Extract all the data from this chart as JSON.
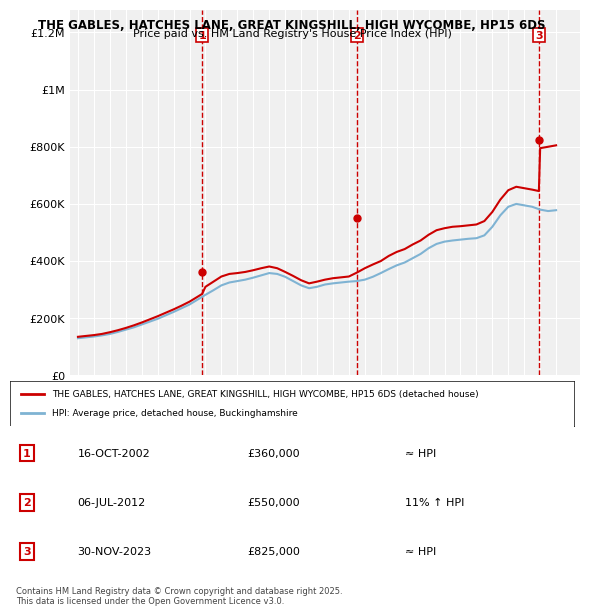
{
  "title_line1": "THE GABLES, HATCHES LANE, GREAT KINGSHILL, HIGH WYCOMBE, HP15 6DS",
  "title_line2": "Price paid vs. HM Land Registry's House Price Index (HPI)",
  "ylabel_ticks": [
    "£0",
    "£200K",
    "£400K",
    "£600K",
    "£800K",
    "£1M",
    "£1.2M"
  ],
  "ytick_values": [
    0,
    200000,
    400000,
    600000,
    800000,
    1000000,
    1200000
  ],
  "ylim": [
    0,
    1280000
  ],
  "xlim_start": 1994.5,
  "xlim_end": 2026.5,
  "background_color": "#ffffff",
  "plot_bg_color": "#f0f0f0",
  "grid_color": "#ffffff",
  "sale_color": "#cc0000",
  "hpi_color": "#7fb3d3",
  "dashed_color": "#cc0000",
  "legend_label1": "THE GABLES, HATCHES LANE, GREAT KINGSHILL, HIGH WYCOMBE, HP15 6DS (detached house)",
  "legend_label2": "HPI: Average price, detached house, Buckinghamshire",
  "sales": [
    {
      "year": 2002.79,
      "price": 360000,
      "label": "1"
    },
    {
      "year": 2012.51,
      "price": 550000,
      "label": "2"
    },
    {
      "year": 2023.92,
      "price": 825000,
      "label": "3"
    }
  ],
  "sale_table": [
    {
      "num": "1",
      "date": "16-OCT-2002",
      "price": "£360,000",
      "hpi": "≈ HPI"
    },
    {
      "num": "2",
      "date": "06-JUL-2012",
      "price": "£550,000",
      "hpi": "11% ↑ HPI"
    },
    {
      "num": "3",
      "date": "30-NOV-2023",
      "price": "£825,000",
      "hpi": "≈ HPI"
    }
  ],
  "footnote": "Contains HM Land Registry data © Crown copyright and database right 2025.\nThis data is licensed under the Open Government Licence v3.0.",
  "hpi_data_years": [
    1995,
    1995.5,
    1996,
    1996.5,
    1997,
    1997.5,
    1998,
    1998.5,
    1999,
    1999.5,
    2000,
    2000.5,
    2001,
    2001.5,
    2002,
    2002.5,
    2003,
    2003.5,
    2004,
    2004.5,
    2005,
    2005.5,
    2006,
    2006.5,
    2007,
    2007.5,
    2008,
    2008.5,
    2009,
    2009.5,
    2010,
    2010.5,
    2011,
    2011.5,
    2012,
    2012.5,
    2013,
    2013.5,
    2014,
    2014.5,
    2015,
    2015.5,
    2016,
    2016.5,
    2017,
    2017.5,
    2018,
    2018.5,
    2019,
    2019.5,
    2020,
    2020.5,
    2021,
    2021.5,
    2022,
    2022.5,
    2023,
    2023.5,
    2024,
    2024.5,
    2025
  ],
  "hpi_data_values": [
    130000,
    133000,
    136000,
    140000,
    145000,
    152000,
    160000,
    168000,
    178000,
    188000,
    198000,
    210000,
    222000,
    235000,
    248000,
    265000,
    282000,
    298000,
    315000,
    325000,
    330000,
    335000,
    342000,
    350000,
    358000,
    355000,
    345000,
    330000,
    315000,
    305000,
    310000,
    318000,
    322000,
    325000,
    328000,
    330000,
    335000,
    345000,
    358000,
    372000,
    385000,
    395000,
    410000,
    425000,
    445000,
    460000,
    468000,
    472000,
    475000,
    478000,
    480000,
    490000,
    520000,
    560000,
    590000,
    600000,
    595000,
    590000,
    580000,
    575000,
    578000
  ],
  "red_line_years": [
    1995,
    1995.5,
    1996,
    1996.5,
    1997,
    1997.5,
    1998,
    1998.5,
    1999,
    1999.5,
    2000,
    2000.5,
    2001,
    2001.5,
    2002,
    2002.5,
    2002.79,
    2003,
    2003.5,
    2004,
    2004.5,
    2005,
    2005.5,
    2006,
    2006.5,
    2007,
    2007.5,
    2008,
    2008.5,
    2009,
    2009.5,
    2010,
    2010.5,
    2011,
    2011.5,
    2012,
    2012.51,
    2013,
    2013.5,
    2014,
    2014.5,
    2015,
    2015.5,
    2016,
    2016.5,
    2017,
    2017.5,
    2018,
    2018.5,
    2019,
    2019.5,
    2020,
    2020.5,
    2021,
    2021.5,
    2022,
    2022.5,
    2023,
    2023.5,
    2023.92,
    2024,
    2024.5,
    2025
  ],
  "red_line_values": [
    135000,
    138000,
    141000,
    145000,
    151000,
    158000,
    166000,
    175000,
    185000,
    196000,
    207000,
    219000,
    231000,
    244000,
    258000,
    275000,
    285000,
    310000,
    328000,
    346000,
    355000,
    358000,
    362000,
    368000,
    375000,
    381000,
    375000,
    362000,
    348000,
    333000,
    322000,
    328000,
    335000,
    340000,
    343000,
    346000,
    360000,
    375000,
    388000,
    400000,
    418000,
    432000,
    442000,
    458000,
    472000,
    492000,
    508000,
    515000,
    520000,
    522000,
    525000,
    528000,
    540000,
    572000,
    615000,
    648000,
    660000,
    655000,
    650000,
    645000,
    795000,
    800000,
    805000
  ]
}
